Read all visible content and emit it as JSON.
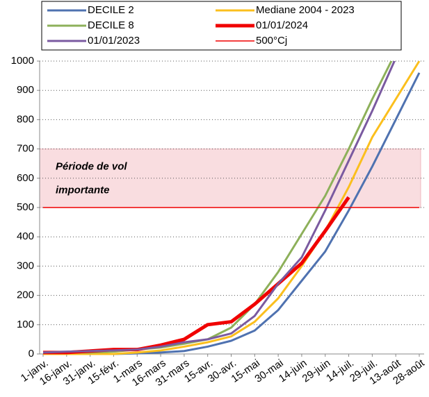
{
  "chart_data": {
    "type": "line",
    "x": [
      0,
      15,
      30,
      45,
      60,
      75,
      90,
      105,
      120,
      135,
      150,
      165,
      180,
      195,
      210,
      225,
      240
    ],
    "xlim": [
      0,
      240
    ],
    "xticks": [
      {
        "value": 0,
        "label": "1-janv."
      },
      {
        "value": 15,
        "label": "16-janv."
      },
      {
        "value": 30,
        "label": "31-janv."
      },
      {
        "value": 45,
        "label": "15-févr."
      },
      {
        "value": 60,
        "label": "1-mars"
      },
      {
        "value": 75,
        "label": "16-mars"
      },
      {
        "value": 90,
        "label": "31-mars"
      },
      {
        "value": 105,
        "label": "15-avr."
      },
      {
        "value": 120,
        "label": "30-avr."
      },
      {
        "value": 135,
        "label": "15-mai"
      },
      {
        "value": 150,
        "label": "30-mai"
      },
      {
        "value": 165,
        "label": "14-juin"
      },
      {
        "value": 180,
        "label": "29-juin"
      },
      {
        "value": 195,
        "label": "14-juil."
      },
      {
        "value": 210,
        "label": "29-juil."
      },
      {
        "value": 225,
        "label": "13-août"
      },
      {
        "value": 240,
        "label": "28-août"
      }
    ],
    "ylim": [
      0,
      1000
    ],
    "yticks": [
      0,
      100,
      200,
      300,
      400,
      500,
      600,
      700,
      800,
      900,
      1000
    ],
    "grid": true,
    "band": {
      "from": 500,
      "to": 700,
      "color": "#f9dde0",
      "label": [
        "Période de vol",
        "importante"
      ]
    },
    "series": [
      {
        "name": "DECILE 2",
        "color": "#4f72b0",
        "values": [
          0,
          0,
          0,
          0,
          2,
          5,
          10,
          25,
          45,
          80,
          150,
          250,
          350,
          490,
          640,
          800,
          960
        ]
      },
      {
        "name": "Mediane 2004 - 2023",
        "color": "#fbbf1d",
        "values": [
          0,
          0,
          0,
          0,
          5,
          12,
          25,
          40,
          60,
          110,
          190,
          300,
          420,
          570,
          740,
          870,
          1000
        ]
      },
      {
        "name": "DECILE 8",
        "color": "#8db05a",
        "values": [
          5,
          5,
          5,
          8,
          15,
          22,
          35,
          50,
          90,
          170,
          280,
          410,
          540,
          700,
          870,
          1030,
          null
        ]
      },
      {
        "name": "01/01/2024",
        "color": "#f00000",
        "width": 5,
        "values": [
          5,
          5,
          10,
          15,
          15,
          30,
          50,
          100,
          110,
          170,
          240,
          310,
          420,
          535,
          null,
          null,
          null
        ]
      },
      {
        "name": "01/01/2023",
        "color": "#7a5aa0",
        "values": [
          5,
          8,
          10,
          12,
          15,
          25,
          40,
          50,
          70,
          130,
          240,
          330,
          490,
          660,
          830,
          1010,
          null
        ]
      },
      {
        "name": "500°Cj",
        "color": "#f00000",
        "width": 1.5,
        "values": [
          500,
          500,
          500,
          500,
          500,
          500,
          500,
          500,
          500,
          500,
          500,
          500,
          500,
          500,
          500,
          500,
          500
        ]
      }
    ]
  }
}
